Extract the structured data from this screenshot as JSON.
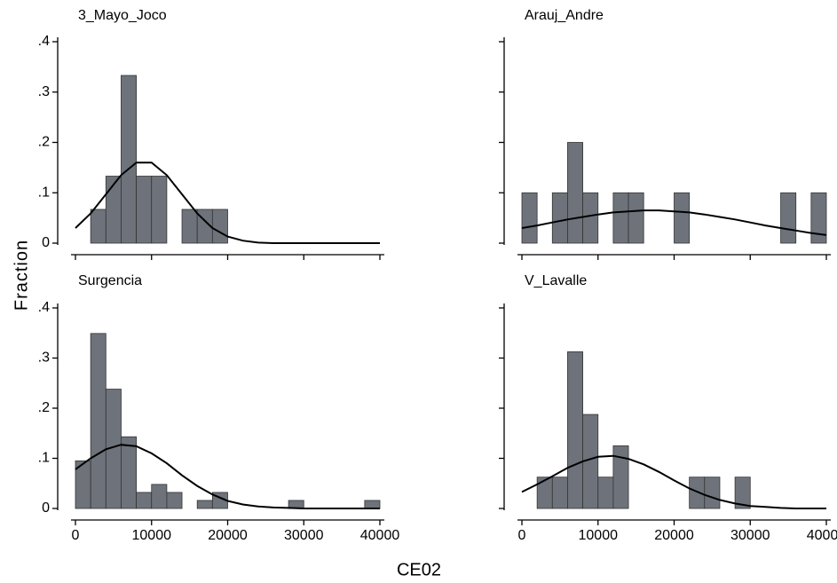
{
  "chart_data": {
    "type": "histogram",
    "ylabel": "Fraction",
    "xlabel": "CE02",
    "bar_color": "#6e737b",
    "curve_color": "#000000",
    "xlim": [
      0,
      40000
    ],
    "xticks": [
      0,
      10000,
      20000,
      30000,
      40000
    ],
    "ylim": [
      0,
      0.4
    ],
    "yticks": [
      0,
      {
        "value": 0.1,
        "label": ".1"
      },
      {
        "value": 0.2,
        "label": ".2"
      },
      {
        "value": 0.3,
        "label": ".3"
      },
      {
        "value": 0.4,
        "label": ".4"
      }
    ],
    "bins": [
      0,
      2000,
      4000,
      6000,
      8000,
      10000,
      12000,
      14000,
      16000,
      18000,
      20000,
      22000,
      24000,
      26000,
      28000,
      30000,
      32000,
      34000,
      36000,
      38000,
      40000
    ],
    "curve_x": [
      0,
      2000,
      4000,
      6000,
      8000,
      10000,
      12000,
      14000,
      16000,
      18000,
      20000,
      22000,
      24000,
      26000,
      28000,
      30000,
      32000,
      34000,
      36000,
      38000,
      40000
    ],
    "panels": [
      {
        "title": "3_Mayo_Joco",
        "values": [
          0,
          0.067,
          0.133,
          0.333,
          0.133,
          0.133,
          0,
          0.067,
          0.067,
          0.067,
          0,
          0,
          0,
          0,
          0,
          0,
          0,
          0,
          0,
          0
        ],
        "curve": [
          0.03,
          0.059,
          0.097,
          0.135,
          0.16,
          0.16,
          0.135,
          0.097,
          0.059,
          0.03,
          0.013,
          0.005,
          0.001,
          0,
          0,
          0,
          0,
          0,
          0,
          0,
          0
        ]
      },
      {
        "title": "Arauj_Andre",
        "values": [
          0.1,
          0,
          0.1,
          0.2,
          0.1,
          0,
          0.1,
          0.1,
          0,
          0,
          0.1,
          0,
          0,
          0,
          0,
          0,
          0,
          0.1,
          0,
          0.1
        ],
        "curve": [
          0.03,
          0.035,
          0.041,
          0.047,
          0.052,
          0.057,
          0.061,
          0.063,
          0.065,
          0.065,
          0.063,
          0.061,
          0.057,
          0.052,
          0.047,
          0.041,
          0.035,
          0.03,
          0.025,
          0.02,
          0.016
        ]
      },
      {
        "title": "Surgencia",
        "values": [
          0.095,
          0.349,
          0.238,
          0.143,
          0.032,
          0.048,
          0.032,
          0,
          0.016,
          0.032,
          0,
          0,
          0,
          0,
          0.016,
          0,
          0,
          0,
          0,
          0.016
        ],
        "curve": [
          0.078,
          0.1,
          0.118,
          0.127,
          0.124,
          0.11,
          0.09,
          0.066,
          0.045,
          0.028,
          0.015,
          0.008,
          0.004,
          0.002,
          0.001,
          0,
          0,
          0,
          0,
          0,
          0
        ]
      },
      {
        "title": "V_Lavalle",
        "values": [
          0,
          0.0625,
          0.0625,
          0.3125,
          0.1875,
          0.0625,
          0.125,
          0,
          0,
          0,
          0,
          0.0625,
          0.0625,
          0,
          0.0625,
          0,
          0,
          0,
          0,
          0
        ],
        "curve": [
          0.033,
          0.048,
          0.064,
          0.081,
          0.094,
          0.103,
          0.105,
          0.099,
          0.088,
          0.073,
          0.056,
          0.04,
          0.027,
          0.017,
          0.01,
          0.005,
          0.003,
          0.001,
          0,
          0,
          0
        ]
      }
    ]
  }
}
